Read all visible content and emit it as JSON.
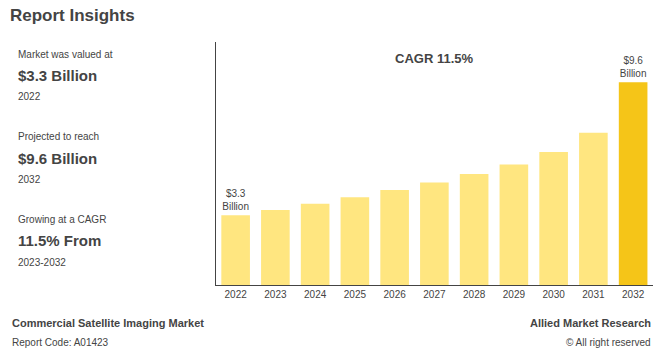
{
  "chart_data": {
    "type": "bar",
    "title": "Report Insights",
    "categories": [
      "2022",
      "2023",
      "2024",
      "2025",
      "2026",
      "2027",
      "2028",
      "2029",
      "2030",
      "2031",
      "2032"
    ],
    "values": [
      3.3,
      3.55,
      3.85,
      4.15,
      4.5,
      4.85,
      5.25,
      5.7,
      6.3,
      7.2,
      9.6
    ],
    "value_labels": [
      "$3.3\nBillion",
      null,
      null,
      null,
      null,
      null,
      null,
      null,
      null,
      null,
      "$9.6\nBillion"
    ],
    "colors": [
      "#FFE680",
      "#FFE680",
      "#FFE680",
      "#FFE680",
      "#FFE680",
      "#FFE680",
      "#FFE680",
      "#FFE680",
      "#FFE680",
      "#FFE680",
      "#F5C518"
    ],
    "ylim": [
      0,
      11.5
    ],
    "tick_labels": "x",
    "grid": false,
    "annotations": [
      "CAGR 11.5%"
    ],
    "insights": [
      {
        "label": "Market was valued at",
        "value": "$3.3 Billion",
        "period": "2022"
      },
      {
        "label": "Projected to reach",
        "value": "$9.6 Billion",
        "period": "2032"
      },
      {
        "label": "Growing at a CAGR",
        "value": "11.5% From",
        "period": "2023-2032"
      }
    ],
    "footer": {
      "left": [
        "Commercial Satellite Imaging Market",
        "Report Code: A01423"
      ],
      "right": [
        "Allied Market Research",
        "© All right reserved"
      ]
    }
  }
}
